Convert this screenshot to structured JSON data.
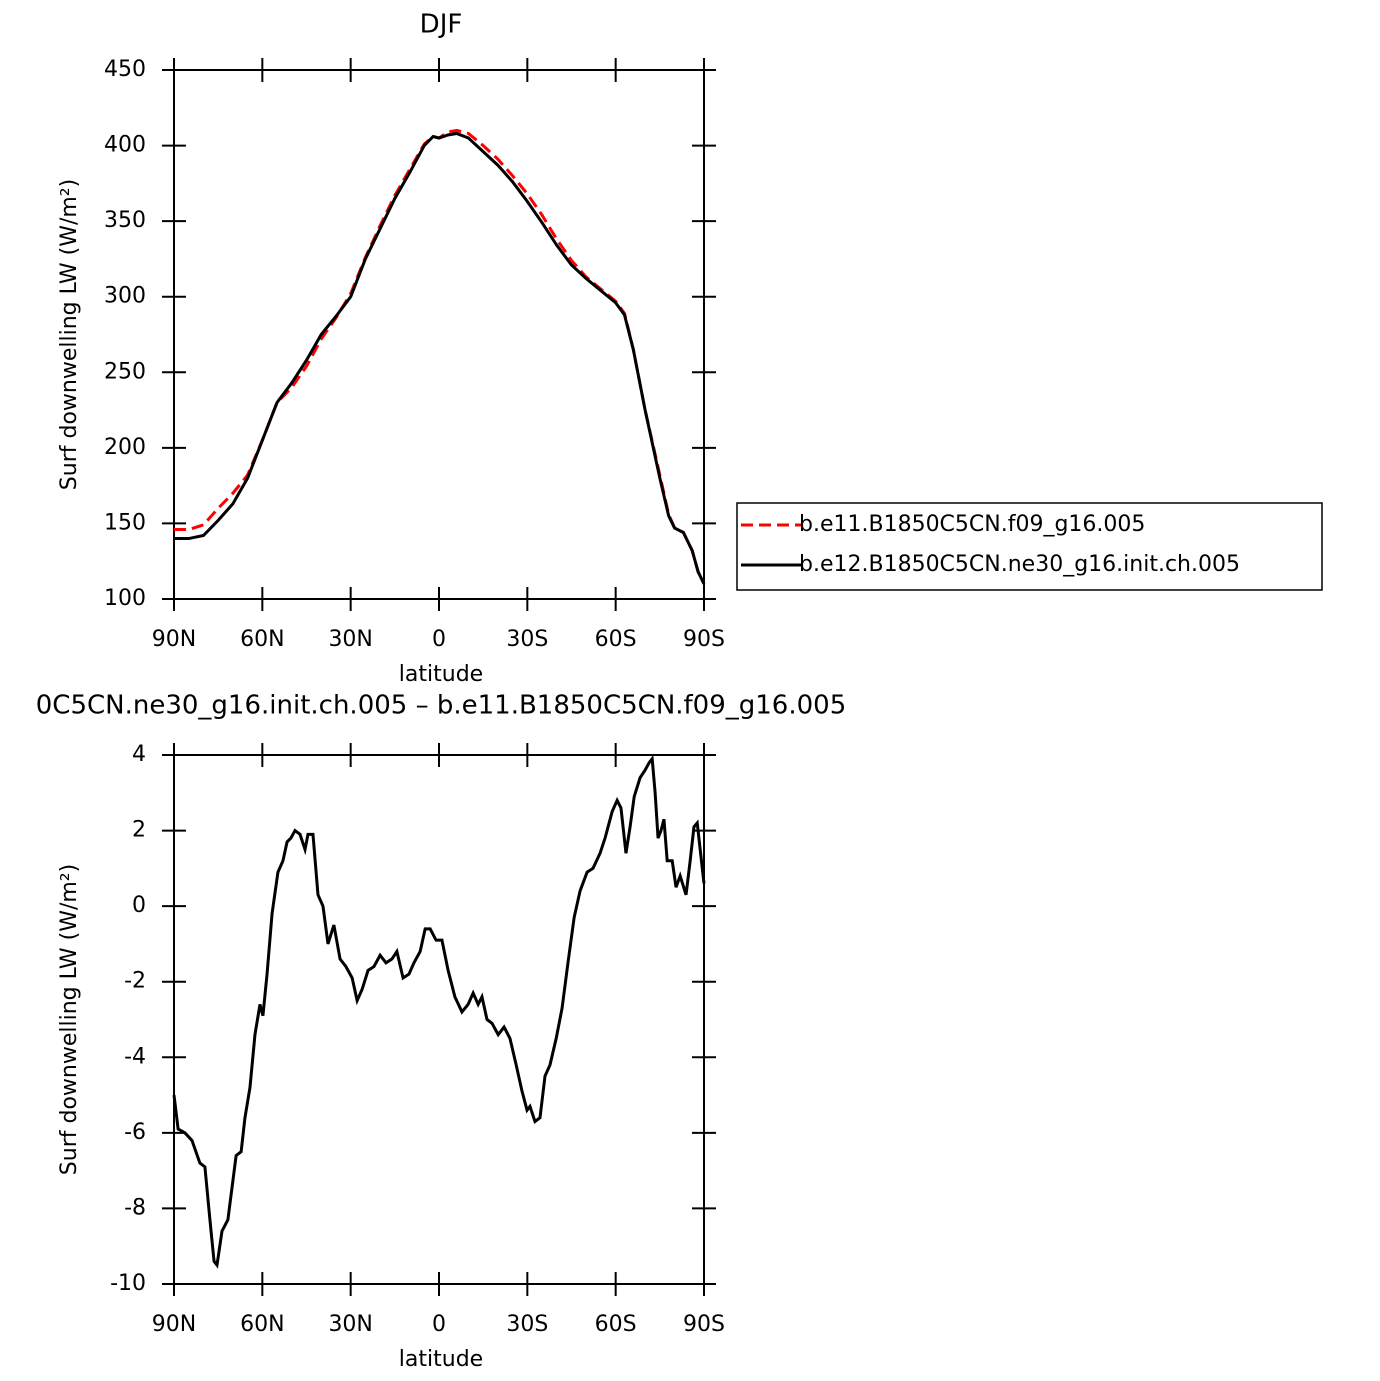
{
  "chart_data": [
    {
      "type": "line",
      "title": "DJF",
      "xlabel": "latitude",
      "ylabel": "Surf downwelling LW (W/m²)",
      "xlim": [
        90,
        -90
      ],
      "xticks": [
        {
          "value": 90,
          "label": "90N"
        },
        {
          "value": 60,
          "label": "60N"
        },
        {
          "value": 30,
          "label": "30N"
        },
        0,
        {
          "value": -30,
          "label": "30S"
        },
        {
          "value": -60,
          "label": "60S"
        },
        {
          "value": -90,
          "label": "90S"
        }
      ],
      "ylim": [
        100,
        450
      ],
      "yticks": [
        100,
        150,
        200,
        250,
        300,
        350,
        400,
        450
      ],
      "legend": "right",
      "x": [
        90,
        85,
        80,
        75,
        70,
        65,
        60,
        55,
        50,
        45,
        40,
        35,
        30,
        25,
        20,
        15,
        10,
        5,
        2,
        0,
        -3,
        -6,
        -10,
        -15,
        -20,
        -25,
        -30,
        -35,
        -40,
        -45,
        -50,
        -55,
        -60,
        -63,
        -66,
        -70,
        -75,
        -78,
        -80,
        -83,
        -86,
        -88,
        -90
      ],
      "series": [
        {
          "name": "b.e11.B1850C5CN.f09_g16.005",
          "color": "#ff0000",
          "dash": true,
          "values": [
            146,
            146,
            149,
            160,
            170,
            182,
            205,
            230,
            240,
            254,
            272,
            286,
            302,
            326,
            347,
            367,
            384,
            401,
            406,
            405,
            409,
            410,
            408,
            400,
            391,
            380,
            368,
            354,
            338,
            324,
            313,
            305,
            297,
            289,
            265,
            225,
            182,
            156,
            147,
            144,
            132,
            118,
            110
          ]
        },
        {
          "name": "b.e12.B1850C5CN.ne30_g16.init.ch.005",
          "color": "#000000",
          "dash": false,
          "values": [
            140,
            140,
            142,
            152,
            163,
            180,
            205,
            230,
            243,
            258,
            275,
            287,
            300,
            325,
            345,
            365,
            382,
            400,
            406,
            405,
            407,
            408,
            405,
            396,
            387,
            376,
            363,
            349,
            334,
            321,
            312,
            304,
            296,
            288,
            265,
            225,
            180,
            155,
            147,
            144,
            132,
            118,
            110
          ]
        }
      ]
    },
    {
      "type": "line",
      "title": "0C5CN.ne30_g16.init.ch.005 – b.e11.B1850C5CN.f09_g16.005",
      "xlabel": "latitude",
      "ylabel": "Surf downwelling LW (W/m²)",
      "xlim": [
        90,
        -90
      ],
      "xticks": [
        {
          "value": 90,
          "label": "90N"
        },
        {
          "value": 60,
          "label": "60N"
        },
        {
          "value": 30,
          "label": "30N"
        },
        0,
        {
          "value": -30,
          "label": "30S"
        },
        {
          "value": -60,
          "label": "60S"
        },
        {
          "value": -90,
          "label": "90S"
        }
      ],
      "ylim": [
        -10,
        4
      ],
      "yticks": [
        -10,
        -8,
        -6,
        -4,
        -2,
        0,
        2,
        4
      ],
      "x": [
        90,
        88.6,
        86.3,
        83.9,
        81.2,
        79.5,
        77.8,
        76.4,
        75.4,
        73.7,
        71.7,
        68.9,
        67.2,
        65.9,
        64.2,
        62.5,
        60.8,
        59.8,
        58.4,
        56.7,
        54.7,
        53.0,
        51.6,
        50.3,
        48.9,
        47.2,
        45.5,
        44.5,
        42.8,
        41.1,
        39.4,
        37.7,
        35.7,
        33.6,
        31.6,
        29.5,
        27.8,
        26.1,
        24.1,
        22.1,
        20.0,
        18.0,
        16.0,
        14.3,
        12.2,
        10.2,
        8.5,
        6.4,
        4.7,
        3.0,
        1.0,
        -1.0,
        -3.1,
        -5.4,
        -7.8,
        -9.9,
        -11.6,
        -13.3,
        -14.6,
        -16.3,
        -18.0,
        -20.1,
        -22.1,
        -24.1,
        -26.2,
        -28.2,
        -29.9,
        -30.9,
        -32.6,
        -34.3,
        -36.0,
        -37.7,
        -39.8,
        -41.8,
        -43.8,
        -45.9,
        -47.9,
        -50.3,
        -52.3,
        -54.7,
        -56.4,
        -58.8,
        -60.5,
        -61.8,
        -63.5,
        -64.9,
        -66.3,
        -68.3,
        -70.0,
        -71.4,
        -72.4,
        -73.4,
        -74.4,
        -75.4,
        -76.4,
        -77.5,
        -79.2,
        -80.5,
        -81.9,
        -83.9,
        -85.3,
        -86.6,
        -87.7,
        -88.7,
        -90
      ],
      "series": [
        {
          "color": "#000000",
          "dash": false,
          "values": [
            -5.0,
            -5.9,
            -6.0,
            -6.2,
            -6.8,
            -6.9,
            -8.3,
            -9.4,
            -9.5,
            -8.6,
            -8.3,
            -6.6,
            -6.5,
            -5.6,
            -4.8,
            -3.4,
            -2.6,
            -2.9,
            -1.8,
            -0.2,
            0.9,
            1.2,
            1.7,
            1.8,
            2.0,
            1.9,
            1.5,
            1.9,
            1.9,
            0.3,
            0.0,
            -1.0,
            -0.5,
            -1.4,
            -1.6,
            -1.9,
            -2.5,
            -2.2,
            -1.7,
            -1.6,
            -1.3,
            -1.5,
            -1.4,
            -1.2,
            -1.9,
            -1.8,
            -1.5,
            -1.2,
            -0.6,
            -0.6,
            -0.9,
            -0.9,
            -1.7,
            -2.4,
            -2.8,
            -2.6,
            -2.3,
            -2.6,
            -2.4,
            -3.0,
            -3.1,
            -3.4,
            -3.2,
            -3.5,
            -4.2,
            -4.9,
            -5.4,
            -5.3,
            -5.7,
            -5.6,
            -4.5,
            -4.2,
            -3.5,
            -2.7,
            -1.5,
            -0.3,
            0.4,
            0.9,
            1.0,
            1.4,
            1.8,
            2.5,
            2.8,
            2.6,
            1.4,
            2.1,
            2.9,
            3.4,
            3.6,
            3.8,
            3.9,
            3.0,
            1.8,
            2.0,
            2.3,
            1.2,
            1.2,
            0.5,
            0.8,
            0.3,
            1.2,
            2.1,
            2.2,
            1.5,
            0.6
          ]
        }
      ]
    }
  ]
}
